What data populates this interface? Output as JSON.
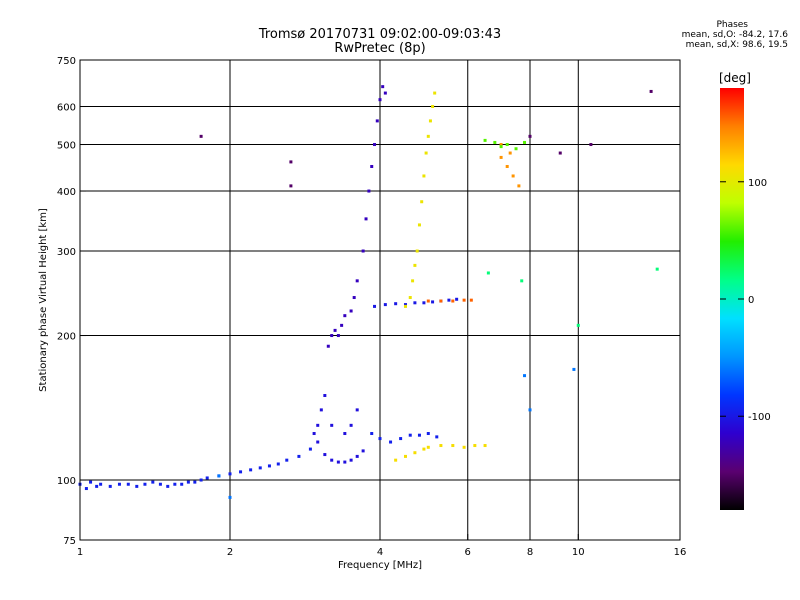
{
  "header": {
    "title": "Tromsø 20170731 09:02:00-09:03:43",
    "subtitle": "RwPretec (8p)"
  },
  "phase_info": {
    "heading": "Phases",
    "line_o": "mean, sd,O: -84.2, 17.6",
    "line_x": "mean, sd,X: 98.6, 19.5"
  },
  "colorbar": {
    "label": "[deg]",
    "min": -180,
    "max": 180,
    "ticks": [
      {
        "v": 100,
        "t": "100"
      },
      {
        "v": 0,
        "t": "0"
      },
      {
        "v": -100,
        "t": "-100"
      }
    ],
    "colors": [
      "#000000",
      "#5a0070",
      "#2e00cf",
      "#0036ff",
      "#0096ff",
      "#00e0ff",
      "#00ff88",
      "#22ee00",
      "#bfff00",
      "#ffd900",
      "#ff8000",
      "#ff0000"
    ]
  },
  "chart_data": {
    "type": "scatter",
    "title": "Tromsø 20170731 09:02:00-09:03:43",
    "subtitle": "RwPretec (8p)",
    "xlabel": "Frequency [MHz]",
    "ylabel": "Stationary phase Virtual Height [km]",
    "x_scale": "log",
    "y_scale": "log",
    "xlim": [
      1,
      16
    ],
    "ylim": [
      75,
      750
    ],
    "x_ticks": [
      {
        "v": 1,
        "t": "1"
      },
      {
        "v": 2,
        "t": "2"
      },
      {
        "v": 4,
        "t": "4"
      },
      {
        "v": 6,
        "t": "6"
      },
      {
        "v": 8,
        "t": "8"
      },
      {
        "v": 10,
        "t": "10"
      },
      {
        "v": 16,
        "t": "16"
      }
    ],
    "y_ticks": [
      {
        "v": 75,
        "t": "75"
      },
      {
        "v": 100,
        "t": "100"
      },
      {
        "v": 200,
        "t": "200"
      },
      {
        "v": 300,
        "t": "300"
      },
      {
        "v": 400,
        "t": "400"
      },
      {
        "v": 500,
        "t": "500"
      },
      {
        "v": 600,
        "t": "600"
      },
      {
        "v": 750,
        "t": "750"
      }
    ],
    "x_grid": [
      2,
      4,
      6,
      8,
      10
    ],
    "y_grid": [
      100,
      200,
      300,
      400,
      500,
      600
    ],
    "grid": true,
    "series": [
      {
        "phase": -95,
        "points": [
          [
            1.0,
            98
          ],
          [
            1.03,
            96
          ],
          [
            1.05,
            99
          ],
          [
            1.08,
            97
          ],
          [
            1.1,
            98
          ],
          [
            1.15,
            97
          ],
          [
            1.2,
            98
          ],
          [
            1.25,
            98
          ],
          [
            1.3,
            97
          ],
          [
            1.35,
            98
          ],
          [
            1.4,
            99
          ],
          [
            1.45,
            98
          ],
          [
            1.5,
            97
          ],
          [
            1.55,
            98
          ],
          [
            1.6,
            98
          ],
          [
            1.65,
            99
          ],
          [
            1.7,
            99
          ],
          [
            1.75,
            100
          ],
          [
            1.8,
            101
          ],
          [
            1.9,
            102
          ],
          [
            2.0,
            103
          ],
          [
            2.1,
            104
          ],
          [
            2.2,
            105
          ],
          [
            2.3,
            106
          ],
          [
            2.4,
            107
          ],
          [
            2.5,
            108
          ],
          [
            2.6,
            110
          ],
          [
            2.75,
            112
          ],
          [
            2.9,
            116
          ]
        ]
      },
      {
        "phase": -105,
        "points": [
          [
            2.95,
            125
          ],
          [
            3.0,
            130
          ],
          [
            3.05,
            140
          ],
          [
            3.1,
            150
          ],
          [
            3.0,
            120
          ],
          [
            3.1,
            113
          ],
          [
            3.2,
            110
          ],
          [
            3.3,
            109
          ],
          [
            3.4,
            109
          ],
          [
            3.5,
            110
          ],
          [
            3.6,
            112
          ],
          [
            3.7,
            115
          ],
          [
            3.2,
            130
          ],
          [
            3.4,
            125
          ],
          [
            3.6,
            140
          ],
          [
            3.5,
            130
          ]
        ]
      },
      {
        "phase": -95,
        "points": [
          [
            3.85,
            125
          ],
          [
            4.0,
            122
          ],
          [
            4.2,
            120
          ],
          [
            4.4,
            122
          ],
          [
            4.6,
            124
          ],
          [
            4.8,
            124
          ],
          [
            5.0,
            125
          ],
          [
            5.2,
            123
          ]
        ]
      },
      {
        "phase": -120,
        "points": [
          [
            3.15,
            190
          ],
          [
            3.2,
            200
          ],
          [
            3.25,
            205
          ],
          [
            3.3,
            200
          ],
          [
            3.35,
            210
          ],
          [
            3.4,
            220
          ],
          [
            3.5,
            225
          ],
          [
            3.55,
            240
          ],
          [
            3.6,
            260
          ],
          [
            3.7,
            300
          ],
          [
            3.75,
            350
          ],
          [
            3.8,
            400
          ],
          [
            3.85,
            450
          ],
          [
            3.9,
            500
          ],
          [
            3.95,
            560
          ],
          [
            4.0,
            620
          ],
          [
            4.05,
            660
          ],
          [
            4.1,
            640
          ]
        ]
      },
      {
        "phase": -100,
        "points": [
          [
            3.9,
            230
          ],
          [
            4.1,
            232
          ],
          [
            4.3,
            233
          ],
          [
            4.5,
            232
          ],
          [
            4.7,
            234
          ],
          [
            4.9,
            234
          ],
          [
            5.1,
            235
          ],
          [
            5.3,
            236
          ],
          [
            5.5,
            237
          ],
          [
            5.7,
            238
          ]
        ]
      },
      {
        "phase": 105,
        "points": [
          [
            4.5,
            230
          ],
          [
            4.6,
            240
          ],
          [
            4.65,
            260
          ],
          [
            4.7,
            280
          ],
          [
            4.75,
            300
          ],
          [
            4.8,
            340
          ],
          [
            4.85,
            380
          ],
          [
            4.9,
            430
          ],
          [
            4.95,
            480
          ],
          [
            5.0,
            520
          ],
          [
            5.05,
            560
          ],
          [
            5.1,
            600
          ],
          [
            5.15,
            640
          ]
        ]
      },
      {
        "phase": 110,
        "points": [
          [
            4.3,
            110
          ],
          [
            4.5,
            112
          ],
          [
            4.7,
            114
          ],
          [
            4.9,
            116
          ],
          [
            5.0,
            117
          ],
          [
            5.3,
            118
          ],
          [
            5.6,
            118
          ],
          [
            5.9,
            117
          ],
          [
            6.2,
            118
          ],
          [
            6.5,
            118
          ]
        ]
      },
      {
        "phase": 155,
        "points": [
          [
            5.0,
            236
          ],
          [
            5.3,
            236
          ],
          [
            5.6,
            236
          ],
          [
            5.9,
            237
          ],
          [
            6.1,
            237
          ]
        ]
      },
      {
        "phase": 140,
        "points": [
          [
            7.0,
            470
          ],
          [
            7.2,
            450
          ],
          [
            7.4,
            430
          ],
          [
            7.6,
            410
          ],
          [
            7.3,
            480
          ],
          [
            7.0,
            500
          ]
        ]
      },
      {
        "phase": 60,
        "points": [
          [
            6.5,
            510
          ],
          [
            6.8,
            505
          ],
          [
            7.0,
            495
          ],
          [
            7.2,
            500
          ],
          [
            7.5,
            490
          ],
          [
            7.8,
            505
          ]
        ]
      },
      {
        "phase": -150,
        "points": [
          [
            1.75,
            520
          ],
          [
            2.65,
            460
          ],
          [
            2.65,
            410
          ],
          [
            9.2,
            480
          ],
          [
            14.0,
            645
          ],
          [
            10.6,
            500
          ],
          [
            8.0,
            520
          ]
        ]
      },
      {
        "phase": 20,
        "points": [
          [
            6.6,
            270
          ],
          [
            7.7,
            260
          ],
          [
            10.0,
            210
          ],
          [
            14.4,
            275
          ]
        ]
      },
      {
        "phase": -60,
        "points": [
          [
            9.8,
            170
          ],
          [
            7.8,
            165
          ],
          [
            2.0,
            92
          ],
          [
            1.9,
            102
          ],
          [
            8.0,
            140
          ]
        ]
      }
    ]
  }
}
